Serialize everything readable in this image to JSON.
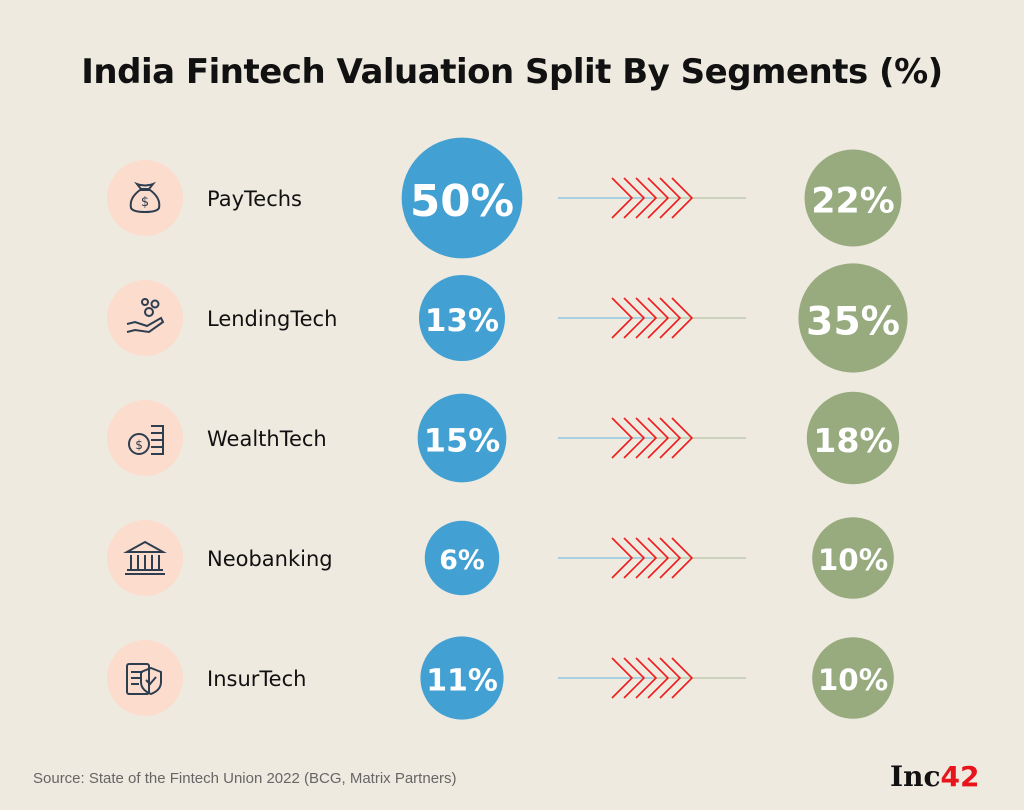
{
  "chart_data": {
    "type": "bubble-comparison",
    "title": "India Fintech Valuation Split By Segments (%)",
    "categories": [
      "PayTechs",
      "LendingTech",
      "WealthTech",
      "Neobanking",
      "InsurTech"
    ],
    "icons": [
      "money-bag-icon",
      "hand-coins-icon",
      "coins-stack-icon",
      "bank-icon",
      "insurance-shield-icon"
    ],
    "series": [
      {
        "name": "before",
        "values": [
          50,
          13,
          15,
          6,
          11
        ],
        "color": "#43a0d2"
      },
      {
        "name": "after",
        "values": [
          22,
          35,
          18,
          10,
          10
        ],
        "color": "#97ab7f"
      }
    ],
    "arrow_color": "#ee1c1c",
    "icon_bg_color": "#fcdccd"
  },
  "source": "Source: State of the Fintech Union 2022 (BCG, Matrix Partners)",
  "logo": {
    "text": "Inc",
    "accent": "42"
  }
}
